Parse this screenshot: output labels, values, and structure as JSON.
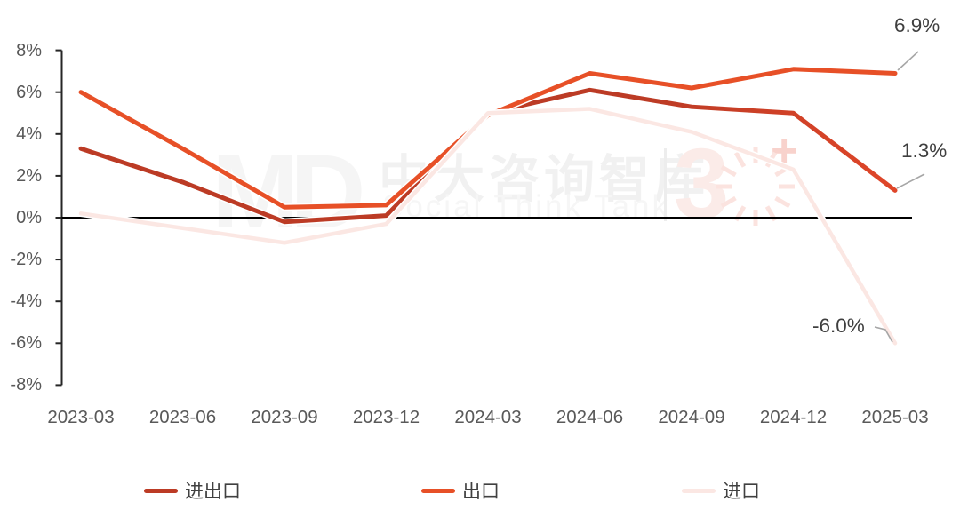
{
  "watermark": {
    "logo": "MD",
    "brand_cn": "中大咨询智库",
    "brand_en": "Social Think Tank",
    "badge_number": "3",
    "badge_plus": "+"
  },
  "chart_data": {
    "type": "line",
    "title": "",
    "xlabel": "",
    "ylabel": "",
    "categories": [
      "2023-03",
      "2023-06",
      "2023-09",
      "2023-12",
      "2024-03",
      "2024-06",
      "2024-09",
      "2024-12",
      "2025-03"
    ],
    "series": [
      {
        "name": "进出口",
        "color": "#BC3B25",
        "color_end": "#DF4629",
        "line_width": 5,
        "values": [
          3.3,
          1.7,
          -0.2,
          0.1,
          5.0,
          6.1,
          5.3,
          5.0,
          1.3
        ]
      },
      {
        "name": "出口",
        "color": "#E75027",
        "color_end": "#E75027",
        "line_width": 5,
        "values": [
          6.0,
          3.3,
          0.5,
          0.6,
          4.9,
          6.9,
          6.2,
          7.1,
          6.9
        ]
      },
      {
        "name": "进口",
        "color": "#FBE7E3",
        "color_end": "#FBE7E3",
        "line_width": 4.5,
        "values": [
          0.2,
          -0.5,
          -1.2,
          -0.3,
          5.0,
          5.2,
          4.1,
          2.3,
          -6.0
        ]
      }
    ],
    "ylim": [
      -8,
      8
    ],
    "yticks": [
      8,
      6,
      4,
      2,
      0,
      -2,
      -4,
      -6,
      -8
    ],
    "ytick_labels": [
      "8%",
      "6%",
      "4%",
      "2%",
      "0%",
      "-2%",
      "-4%",
      "-6%",
      "-8%"
    ],
    "grid": "zero-line-only",
    "legend_position": "bottom",
    "annotations": [
      {
        "series": "出口",
        "point": "2025-03",
        "label": "6.9%"
      },
      {
        "series": "进出口",
        "point": "2025-03",
        "label": "1.3%"
      },
      {
        "series": "进口",
        "point": "2025-03",
        "label": "-6.0%"
      }
    ],
    "axis_color": "#262626",
    "zero_line_color": "#000000",
    "leader_line_color": "#a6a6a6"
  }
}
